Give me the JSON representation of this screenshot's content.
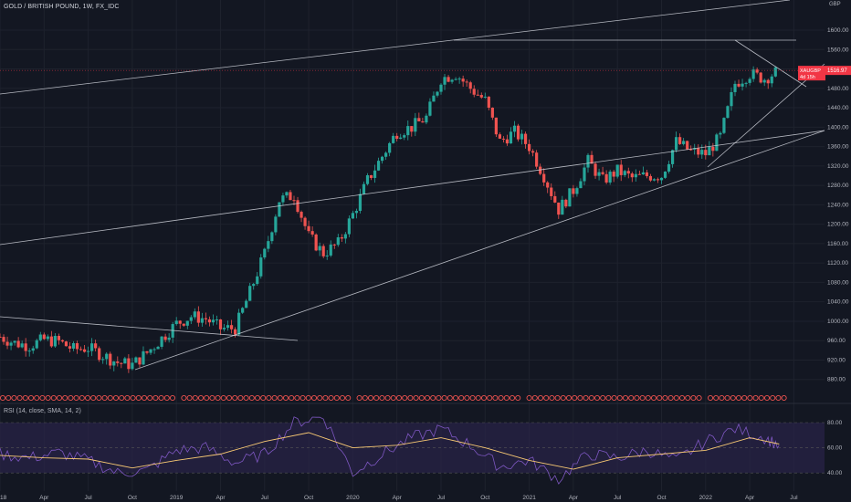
{
  "header": {
    "title": "GOLD / BRITISH POUND, 1W, FX_IDC"
  },
  "price_axis": {
    "unit": "GBP"
  },
  "last_price": {
    "symbol": "XAUGBP",
    "value": "1516.97",
    "countdown": "4d 15h"
  },
  "rsi": {
    "label": "RSI (14, close, SMA, 14, 2)",
    "levels": [
      80,
      60,
      40
    ]
  },
  "colors": {
    "background": "#131722",
    "up": "#26a69a",
    "down": "#ef5350",
    "rsi_line": "#7e57c2",
    "rsi_sma": "#f7c873",
    "trendline": "#d1d4dc",
    "rsi_band": "#2a2448",
    "last_price_bg": "#f23645"
  },
  "chart_data": [
    {
      "type": "candlestick",
      "title": "GOLD / BRITISH POUND, 1W, FX_IDC",
      "ylim": [
        840,
        1620
      ],
      "y_ticks": [
        "880.00",
        "920.00",
        "960.00",
        "1000.00",
        "1040.00",
        "1080.00",
        "1120.00",
        "1160.00",
        "1200.00",
        "1240.00",
        "1280.00",
        "1320.00",
        "1360.00",
        "1400.00",
        "1440.00",
        "1480.00",
        "1520.00",
        "1560.00",
        "1600.00"
      ],
      "x_ticks": [
        "2018",
        "Apr",
        "Jul",
        "Oct",
        "2019",
        "Apr",
        "Jul",
        "Oct",
        "2020",
        "Apr",
        "Jul",
        "Oct",
        "2021",
        "Apr",
        "Jul",
        "Oct",
        "2022",
        "Apr",
        "Jul"
      ],
      "series": [
        {
          "x": "2018-01-01",
          "y": 968
        },
        {
          "x": "2018-02-01",
          "y": 955
        },
        {
          "x": "2018-03-01",
          "y": 950
        },
        {
          "x": "2018-04-01",
          "y": 962
        },
        {
          "x": "2018-05-01",
          "y": 958
        },
        {
          "x": "2018-06-01",
          "y": 942
        },
        {
          "x": "2018-07-01",
          "y": 945
        },
        {
          "x": "2018-08-01",
          "y": 930
        },
        {
          "x": "2018-09-01",
          "y": 915
        },
        {
          "x": "2018-10-01",
          "y": 910
        },
        {
          "x": "2018-11-01",
          "y": 935
        },
        {
          "x": "2018-12-01",
          "y": 965
        },
        {
          "x": "2019-01-01",
          "y": 995
        },
        {
          "x": "2019-02-01",
          "y": 1010
        },
        {
          "x": "2019-03-01",
          "y": 1005
        },
        {
          "x": "2019-04-01",
          "y": 985
        },
        {
          "x": "2019-05-01",
          "y": 985
        },
        {
          "x": "2019-06-01",
          "y": 1060
        },
        {
          "x": "2019-07-01",
          "y": 1140
        },
        {
          "x": "2019-08-01",
          "y": 1250
        },
        {
          "x": "2019-09-01",
          "y": 1260
        },
        {
          "x": "2019-10-01",
          "y": 1175
        },
        {
          "x": "2019-11-01",
          "y": 1140
        },
        {
          "x": "2019-12-01",
          "y": 1160
        },
        {
          "x": "2020-01-01",
          "y": 1220
        },
        {
          "x": "2020-02-01",
          "y": 1290
        },
        {
          "x": "2020-03-01",
          "y": 1340
        },
        {
          "x": "2020-04-01",
          "y": 1390
        },
        {
          "x": "2020-05-01",
          "y": 1400
        },
        {
          "x": "2020-06-01",
          "y": 1420
        },
        {
          "x": "2020-07-01",
          "y": 1500
        },
        {
          "x": "2020-08-01",
          "y": 1510
        },
        {
          "x": "2020-09-01",
          "y": 1480
        },
        {
          "x": "2020-10-01",
          "y": 1455
        },
        {
          "x": "2020-11-01",
          "y": 1370
        },
        {
          "x": "2020-12-01",
          "y": 1390
        },
        {
          "x": "2021-01-01",
          "y": 1360
        },
        {
          "x": "2021-02-01",
          "y": 1300
        },
        {
          "x": "2021-03-01",
          "y": 1230
        },
        {
          "x": "2021-04-01",
          "y": 1270
        },
        {
          "x": "2021-05-01",
          "y": 1330
        },
        {
          "x": "2021-06-01",
          "y": 1290
        },
        {
          "x": "2021-07-01",
          "y": 1310
        },
        {
          "x": "2021-08-01",
          "y": 1295
        },
        {
          "x": "2021-09-01",
          "y": 1300
        },
        {
          "x": "2021-10-01",
          "y": 1300
        },
        {
          "x": "2021-11-01",
          "y": 1370
        },
        {
          "x": "2021-12-01",
          "y": 1350
        },
        {
          "x": "2022-01-01",
          "y": 1345
        },
        {
          "x": "2022-02-01",
          "y": 1380
        },
        {
          "x": "2022-03-01",
          "y": 1490
        },
        {
          "x": "2022-04-01",
          "y": 1510
        },
        {
          "x": "2022-05-01",
          "y": 1500
        },
        {
          "x": "2022-06-01",
          "y": 1517
        }
      ]
    },
    {
      "type": "line",
      "title": "RSI (14, close, SMA, 14, 2)",
      "ylim": [
        25,
        90
      ],
      "y_ticks": [
        "80.00",
        "60.00",
        "40.00"
      ],
      "series": [
        {
          "name": "RSI",
          "x": [
            "2018-01",
            "2018-03",
            "2018-05",
            "2018-07",
            "2018-09",
            "2018-11",
            "2019-01",
            "2019-03",
            "2019-05",
            "2019-07",
            "2019-09",
            "2019-11",
            "2020-01",
            "2020-03",
            "2020-05",
            "2020-07",
            "2020-09",
            "2020-11",
            "2021-01",
            "2021-03",
            "2021-05",
            "2021-07",
            "2021-09",
            "2021-11",
            "2022-01",
            "2022-03",
            "2022-05",
            "2022-06"
          ],
          "values": [
            55,
            52,
            56,
            50,
            40,
            42,
            58,
            60,
            48,
            55,
            80,
            85,
            40,
            55,
            68,
            75,
            62,
            45,
            50,
            35,
            55,
            52,
            58,
            50,
            65,
            75,
            68,
            62
          ]
        },
        {
          "name": "SMA",
          "x": [
            "2018-01",
            "2018-04",
            "2018-07",
            "2018-10",
            "2019-01",
            "2019-04",
            "2019-07",
            "2019-10",
            "2020-01",
            "2020-04",
            "2020-07",
            "2020-10",
            "2021-01",
            "2021-04",
            "2021-07",
            "2021-10",
            "2022-01",
            "2022-04",
            "2022-06"
          ],
          "values": [
            54,
            52,
            51,
            44,
            50,
            55,
            65,
            72,
            60,
            62,
            68,
            60,
            50,
            43,
            52,
            55,
            58,
            68,
            63
          ]
        }
      ]
    }
  ]
}
